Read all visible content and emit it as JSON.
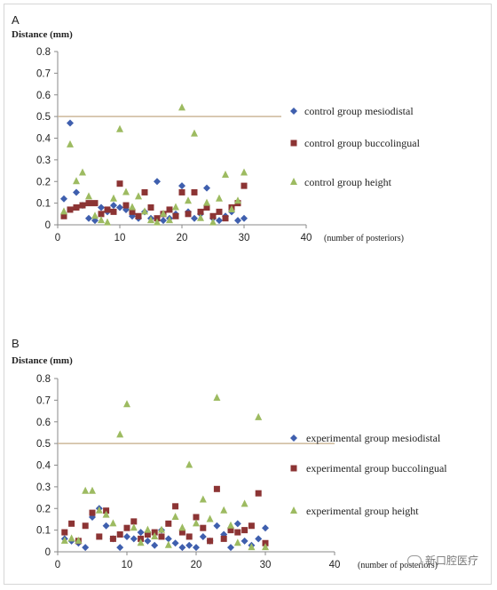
{
  "panels": [
    {
      "letter": "A"
    },
    {
      "letter": "B"
    }
  ],
  "watermark": "新口腔医疗",
  "chart_data": [
    {
      "type": "scatter",
      "ylabel": "Distance (mm)",
      "xlabel": "(number of posteriors)",
      "xlim": [
        0,
        40
      ],
      "ylim": [
        0,
        0.8
      ],
      "xticks": [
        0,
        10,
        20,
        30,
        40
      ],
      "yticks": [
        0,
        0.1,
        0.2,
        0.3,
        0.4,
        0.5,
        0.6,
        0.7,
        0.8
      ],
      "reference_line": {
        "y": 0.5,
        "x_range": [
          0,
          36
        ],
        "color": "#cdb89a"
      },
      "grid": false,
      "legend_position": "right",
      "series": [
        {
          "name": "control group mesiodistal",
          "marker": "diamond",
          "color": "#3f5fae",
          "points": [
            [
              1,
              0.12
            ],
            [
              2,
              0.47
            ],
            [
              3,
              0.15
            ],
            [
              4,
              0.09
            ],
            [
              5,
              0.03
            ],
            [
              6,
              0.02
            ],
            [
              7,
              0.08
            ],
            [
              8,
              0.06
            ],
            [
              9,
              0.09
            ],
            [
              10,
              0.08
            ],
            [
              11,
              0.07
            ],
            [
              12,
              0.04
            ],
            [
              13,
              0.03
            ],
            [
              14,
              0.06
            ],
            [
              15,
              0.03
            ],
            [
              16,
              0.2
            ],
            [
              17,
              0.02
            ],
            [
              18,
              0.03
            ],
            [
              19,
              0.05
            ],
            [
              20,
              0.18
            ],
            [
              21,
              0.06
            ],
            [
              22,
              0.03
            ],
            [
              23,
              0.05
            ],
            [
              24,
              0.17
            ],
            [
              25,
              0.03
            ],
            [
              26,
              0.02
            ],
            [
              27,
              0.04
            ],
            [
              28,
              0.06
            ],
            [
              29,
              0.02
            ],
            [
              30,
              0.03
            ]
          ]
        },
        {
          "name": "control group buccolingual",
          "marker": "square",
          "color": "#8c3434",
          "points": [
            [
              1,
              0.04
            ],
            [
              2,
              0.07
            ],
            [
              3,
              0.08
            ],
            [
              4,
              0.09
            ],
            [
              5,
              0.1
            ],
            [
              6,
              0.1
            ],
            [
              7,
              0.05
            ],
            [
              8,
              0.07
            ],
            [
              9,
              0.06
            ],
            [
              10,
              0.19
            ],
            [
              11,
              0.09
            ],
            [
              12,
              0.06
            ],
            [
              13,
              0.04
            ],
            [
              14,
              0.15
            ],
            [
              15,
              0.08
            ],
            [
              16,
              0.03
            ],
            [
              17,
              0.05
            ],
            [
              18,
              0.07
            ],
            [
              19,
              0.04
            ],
            [
              20,
              0.15
            ],
            [
              21,
              0.05
            ],
            [
              22,
              0.15
            ],
            [
              23,
              0.06
            ],
            [
              24,
              0.08
            ],
            [
              25,
              0.04
            ],
            [
              26,
              0.06
            ],
            [
              27,
              0.03
            ],
            [
              28,
              0.08
            ],
            [
              29,
              0.1
            ],
            [
              30,
              0.18
            ]
          ]
        },
        {
          "name": "control group height",
          "marker": "triangle",
          "color": "#9dbb61",
          "points": [
            [
              1,
              0.06
            ],
            [
              2,
              0.37
            ],
            [
              3,
              0.2
            ],
            [
              4,
              0.24
            ],
            [
              5,
              0.13
            ],
            [
              6,
              0.04
            ],
            [
              7,
              0.02
            ],
            [
              8,
              0.01
            ],
            [
              9,
              0.12
            ],
            [
              10,
              0.44
            ],
            [
              11,
              0.15
            ],
            [
              12,
              0.08
            ],
            [
              13,
              0.13
            ],
            [
              14,
              0.06
            ],
            [
              15,
              0.02
            ],
            [
              16,
              0.01
            ],
            [
              17,
              0.05
            ],
            [
              18,
              0.02
            ],
            [
              19,
              0.08
            ],
            [
              20,
              0.54
            ],
            [
              21,
              0.11
            ],
            [
              22,
              0.42
            ],
            [
              23,
              0.03
            ],
            [
              24,
              0.1
            ],
            [
              25,
              0.01
            ],
            [
              26,
              0.12
            ],
            [
              27,
              0.23
            ],
            [
              28,
              0.07
            ],
            [
              29,
              0.11
            ],
            [
              30,
              0.24
            ]
          ]
        }
      ]
    },
    {
      "type": "scatter",
      "ylabel": "Distance (mm)",
      "xlabel": "(number of posteriors)",
      "xlim": [
        0,
        40
      ],
      "ylim": [
        0,
        0.8
      ],
      "xticks": [
        0,
        10,
        20,
        30,
        40
      ],
      "yticks": [
        0,
        0.1,
        0.2,
        0.3,
        0.4,
        0.5,
        0.6,
        0.7,
        0.8
      ],
      "reference_line": {
        "y": 0.5,
        "x_range": [
          0,
          40
        ],
        "color": "#cdb89a"
      },
      "grid": false,
      "legend_position": "right",
      "series": [
        {
          "name": "experimental group mesiodistal",
          "marker": "diamond",
          "color": "#3f5fae",
          "points": [
            [
              1,
              0.06
            ],
            [
              2,
              0.05
            ],
            [
              3,
              0.04
            ],
            [
              4,
              0.02
            ],
            [
              5,
              0.16
            ],
            [
              6,
              0.2
            ],
            [
              7,
              0.12
            ],
            [
              8,
              0.06
            ],
            [
              9,
              0.02
            ],
            [
              10,
              0.07
            ],
            [
              11,
              0.06
            ],
            [
              12,
              0.09
            ],
            [
              13,
              0.05
            ],
            [
              14,
              0.03
            ],
            [
              15,
              0.1
            ],
            [
              16,
              0.06
            ],
            [
              17,
              0.04
            ],
            [
              18,
              0.02
            ],
            [
              19,
              0.03
            ],
            [
              20,
              0.02
            ],
            [
              21,
              0.07
            ],
            [
              22,
              0.05
            ],
            [
              23,
              0.12
            ],
            [
              24,
              0.08
            ],
            [
              25,
              0.02
            ],
            [
              26,
              0.13
            ],
            [
              27,
              0.05
            ],
            [
              28,
              0.03
            ],
            [
              29,
              0.06
            ],
            [
              30,
              0.11
            ]
          ]
        },
        {
          "name": "experimental group buccolingual",
          "marker": "square",
          "color": "#8c3434",
          "points": [
            [
              1,
              0.09
            ],
            [
              2,
              0.13
            ],
            [
              3,
              0.05
            ],
            [
              4,
              0.12
            ],
            [
              5,
              0.18
            ],
            [
              6,
              0.07
            ],
            [
              7,
              0.19
            ],
            [
              8,
              0.06
            ],
            [
              9,
              0.08
            ],
            [
              10,
              0.11
            ],
            [
              11,
              0.14
            ],
            [
              12,
              0.06
            ],
            [
              13,
              0.08
            ],
            [
              14,
              0.09
            ],
            [
              15,
              0.07
            ],
            [
              16,
              0.13
            ],
            [
              17,
              0.21
            ],
            [
              18,
              0.09
            ],
            [
              19,
              0.07
            ],
            [
              20,
              0.16
            ],
            [
              21,
              0.11
            ],
            [
              22,
              0.05
            ],
            [
              23,
              0.29
            ],
            [
              24,
              0.06
            ],
            [
              25,
              0.1
            ],
            [
              26,
              0.09
            ],
            [
              27,
              0.1
            ],
            [
              28,
              0.12
            ],
            [
              29,
              0.27
            ],
            [
              30,
              0.04
            ]
          ]
        },
        {
          "name": "experimental group height",
          "marker": "triangle",
          "color": "#9dbb61",
          "points": [
            [
              1,
              0.05
            ],
            [
              2,
              0.06
            ],
            [
              3,
              0.05
            ],
            [
              4,
              0.28
            ],
            [
              5,
              0.28
            ],
            [
              6,
              0.19
            ],
            [
              7,
              0.17
            ],
            [
              8,
              0.13
            ],
            [
              9,
              0.54
            ],
            [
              10,
              0.68
            ],
            [
              11,
              0.11
            ],
            [
              12,
              0.04
            ],
            [
              13,
              0.1
            ],
            [
              14,
              0.07
            ],
            [
              15,
              0.1
            ],
            [
              16,
              0.03
            ],
            [
              17,
              0.16
            ],
            [
              18,
              0.11
            ],
            [
              19,
              0.4
            ],
            [
              20,
              0.13
            ],
            [
              21,
              0.24
            ],
            [
              22,
              0.15
            ],
            [
              23,
              0.71
            ],
            [
              24,
              0.19
            ],
            [
              25,
              0.12
            ],
            [
              26,
              0.04
            ],
            [
              27,
              0.22
            ],
            [
              28,
              0.02
            ],
            [
              29,
              0.62
            ],
            [
              30,
              0.02
            ]
          ]
        }
      ]
    }
  ]
}
